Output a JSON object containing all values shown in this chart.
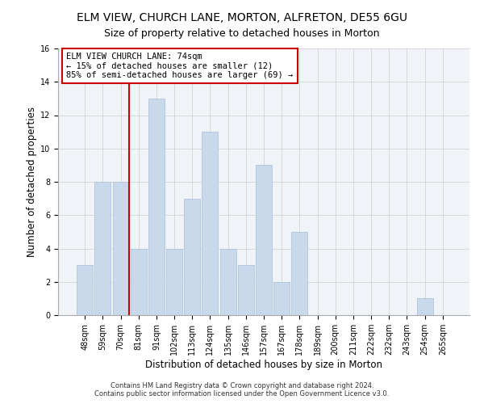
{
  "title": "ELM VIEW, CHURCH LANE, MORTON, ALFRETON, DE55 6GU",
  "subtitle": "Size of property relative to detached houses in Morton",
  "xlabel": "Distribution of detached houses by size in Morton",
  "ylabel": "Number of detached properties",
  "bar_labels": [
    "48sqm",
    "59sqm",
    "70sqm",
    "81sqm",
    "91sqm",
    "102sqm",
    "113sqm",
    "124sqm",
    "135sqm",
    "146sqm",
    "157sqm",
    "167sqm",
    "178sqm",
    "189sqm",
    "200sqm",
    "211sqm",
    "222sqm",
    "232sqm",
    "243sqm",
    "254sqm",
    "265sqm"
  ],
  "bar_values": [
    3,
    8,
    8,
    4,
    13,
    4,
    7,
    11,
    4,
    3,
    9,
    2,
    5,
    0,
    0,
    0,
    0,
    0,
    0,
    1,
    0
  ],
  "bar_color": "#c9d9ec",
  "bar_edge_color": "#afc4db",
  "subject_line_color": "#cc0000",
  "annotation_line1": "ELM VIEW CHURCH LANE: 74sqm",
  "annotation_line2": "← 15% of detached houses are smaller (12)",
  "annotation_line3": "85% of semi-detached houses are larger (69) →",
  "annotation_box_color": "#ffffff",
  "annotation_box_edge_color": "#cc0000",
  "ylim": [
    0,
    16
  ],
  "yticks": [
    0,
    2,
    4,
    6,
    8,
    10,
    12,
    14,
    16
  ],
  "footer_line1": "Contains HM Land Registry data © Crown copyright and database right 2024.",
  "footer_line2": "Contains public sector information licensed under the Open Government Licence v3.0.",
  "title_fontsize": 10,
  "xlabel_fontsize": 8.5,
  "ylabel_fontsize": 8.5,
  "tick_fontsize": 7,
  "footer_fontsize": 6,
  "annotation_fontsize": 7.5,
  "bg_color": "#f0f4f8"
}
